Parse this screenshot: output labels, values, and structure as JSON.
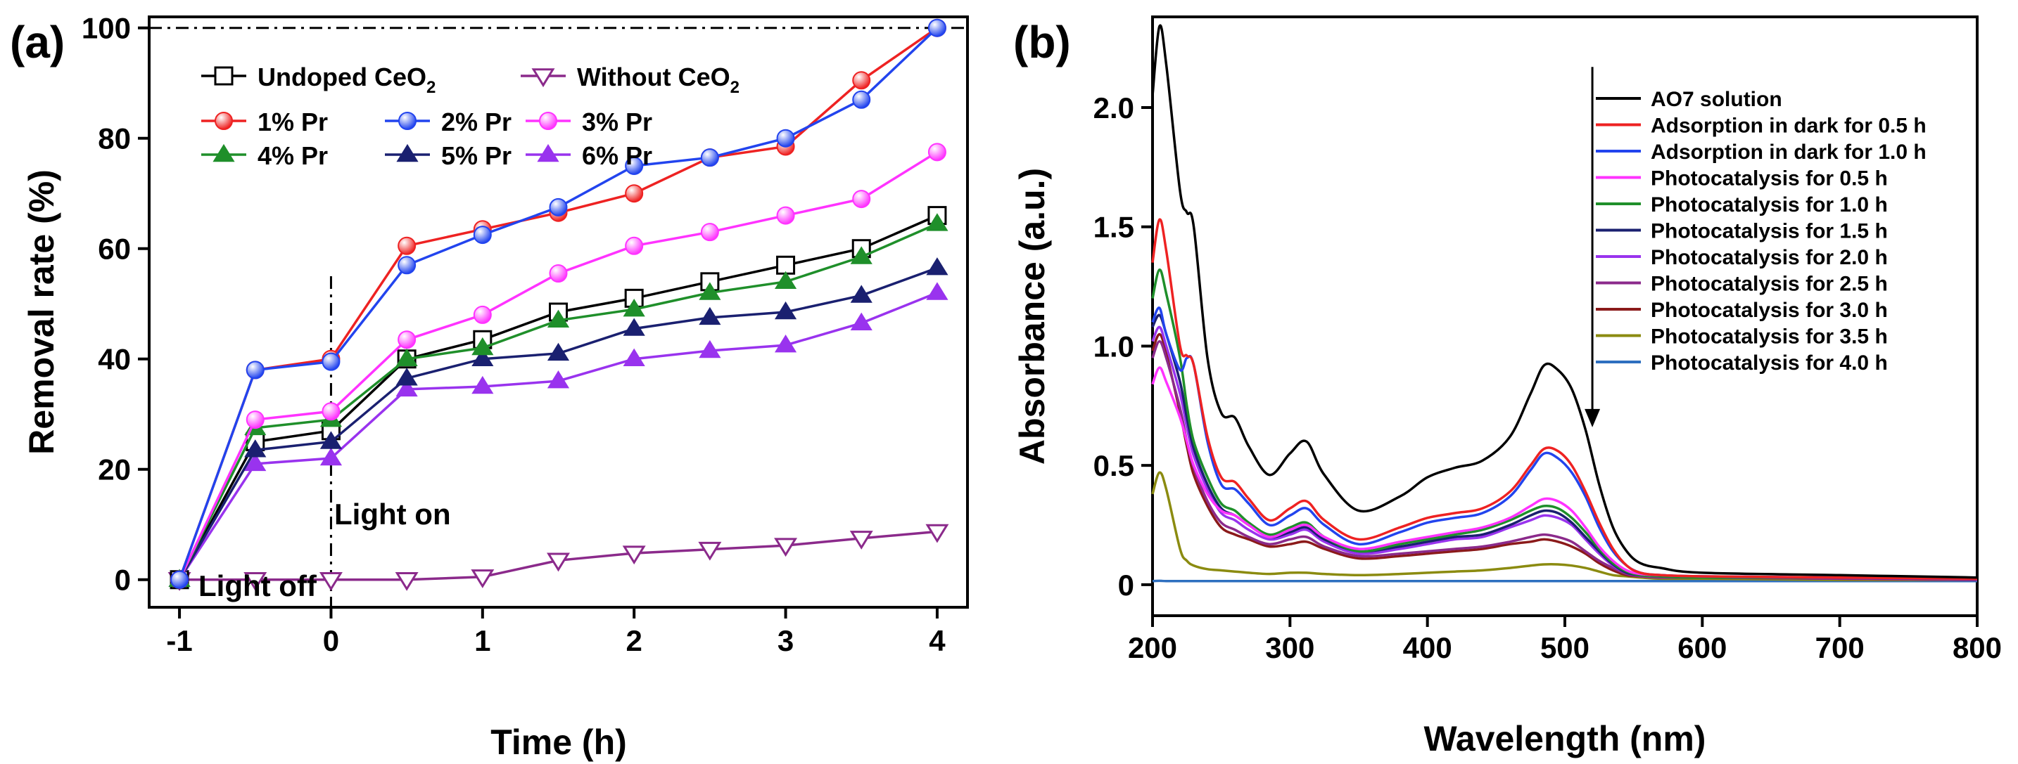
{
  "chart_data": [
    {
      "panel_label": "(a)",
      "type": "line",
      "xlabel": "Time (h)",
      "ylabel": "Removal rate (%)",
      "xlim": [
        -1.2,
        4.2
      ],
      "ylim": [
        -5,
        102
      ],
      "xticks": [
        -1,
        0,
        1,
        2,
        3,
        4
      ],
      "xtick_labels": [
        "-1",
        "0",
        "1",
        "2",
        "3",
        "4"
      ],
      "yticks": [
        0,
        20,
        40,
        60,
        80,
        100
      ],
      "ytick_labels": [
        "0",
        "20",
        "40",
        "60",
        "80",
        "100"
      ],
      "reference_line_y": 100,
      "divider_x": 0,
      "annotations": {
        "light_off": "Light off",
        "light_on": "Light on"
      },
      "legend": {
        "row1": [
          {
            "series": 0,
            "name": "Undoped CeO",
            "subscript": "2"
          },
          {
            "series": 1,
            "name": "Without CeO",
            "subscript": "2"
          }
        ],
        "rows": [
          [
            2,
            3,
            4
          ],
          [
            5,
            6,
            7
          ]
        ]
      },
      "x": [
        -1,
        -0.5,
        0,
        0.5,
        1,
        1.5,
        2,
        2.5,
        3,
        3.5,
        4
      ],
      "series": [
        {
          "name": "Undoped CeO2",
          "color": "#000000",
          "marker": "square-open",
          "values": [
            0,
            25,
            27,
            40,
            43.5,
            48.5,
            51,
            54,
            57,
            60,
            66
          ]
        },
        {
          "name": "Without CeO2",
          "color": "#8b2a8b",
          "marker": "triangle-down-open",
          "values": [
            0,
            0,
            0,
            0,
            0.5,
            3.5,
            4.8,
            5.5,
            6.2,
            7.5,
            8.7
          ]
        },
        {
          "name": "1% Pr",
          "color": "#ee2222",
          "marker": "sphere",
          "values": [
            0,
            38,
            40,
            60.5,
            63.5,
            66.5,
            70,
            76.5,
            78.5,
            90.5,
            100
          ]
        },
        {
          "name": "2% Pr",
          "color": "#2244ee",
          "marker": "sphere",
          "values": [
            0,
            38,
            39.5,
            57,
            62.5,
            67.5,
            75,
            76.5,
            80,
            87,
            100
          ]
        },
        {
          "name": "3% Pr",
          "color": "#ff33ff",
          "marker": "sphere",
          "values": [
            0,
            29,
            30.5,
            43.5,
            48,
            55.5,
            60.5,
            63,
            66,
            69,
            77.5
          ]
        },
        {
          "name": "4% Pr",
          "color": "#1f8f2a",
          "marker": "triangle-up",
          "values": [
            0,
            27.5,
            29,
            40,
            42,
            47,
            49,
            52,
            54,
            58.5,
            64.5
          ]
        },
        {
          "name": "5% Pr",
          "color": "#1a2070",
          "marker": "triangle-up",
          "values": [
            0,
            23.5,
            25,
            36.5,
            40,
            41,
            45.5,
            47.5,
            48.5,
            51.5,
            56.5
          ]
        },
        {
          "name": "6% Pr",
          "color": "#9933ee",
          "marker": "triangle-up",
          "values": [
            0,
            21,
            22,
            34.5,
            35,
            36,
            40,
            41.5,
            42.5,
            46.5,
            52
          ]
        }
      ]
    },
    {
      "panel_label": "(b)",
      "type": "line",
      "xlabel": "Wavelength (nm)",
      "ylabel": "Absorbance (a.u.)",
      "xlim": [
        200,
        800
      ],
      "ylim": [
        -0.13,
        2.38
      ],
      "xticks": [
        200,
        300,
        400,
        500,
        600,
        700,
        800
      ],
      "xtick_labels": [
        "200",
        "300",
        "400",
        "500",
        "600",
        "700",
        "800"
      ],
      "yticks": [
        0,
        0.5,
        1.0,
        1.5,
        2.0
      ],
      "ytick_labels": [
        "0",
        "0.5",
        "1.0",
        "1.5",
        "2.0"
      ],
      "arrow": {
        "x": 520,
        "y_start": 2.17,
        "y_end": 0.66
      },
      "x": [
        200,
        205,
        210,
        220,
        225,
        230,
        240,
        250,
        260,
        270,
        285,
        300,
        312,
        325,
        350,
        380,
        400,
        420,
        440,
        460,
        475,
        485,
        495,
        505,
        515,
        525,
        535,
        545,
        555,
        570,
        600,
        700,
        800
      ],
      "series": [
        {
          "name": "AO7 solution",
          "color": "#000000",
          "values": [
            2.05,
            2.34,
            2.18,
            1.65,
            1.56,
            1.5,
            0.95,
            0.72,
            0.7,
            0.58,
            0.46,
            0.55,
            0.6,
            0.46,
            0.31,
            0.37,
            0.45,
            0.49,
            0.52,
            0.62,
            0.8,
            0.92,
            0.9,
            0.82,
            0.65,
            0.42,
            0.24,
            0.14,
            0.09,
            0.07,
            0.05,
            0.04,
            0.03
          ]
        },
        {
          "name": "Adsorption in dark for 0.5 h",
          "color": "#ee2222",
          "values": [
            1.35,
            1.53,
            1.4,
            1.0,
            0.96,
            0.92,
            0.62,
            0.45,
            0.43,
            0.36,
            0.27,
            0.32,
            0.35,
            0.27,
            0.19,
            0.24,
            0.28,
            0.3,
            0.32,
            0.39,
            0.5,
            0.57,
            0.56,
            0.5,
            0.39,
            0.26,
            0.15,
            0.08,
            0.05,
            0.04,
            0.035,
            0.03,
            0.025
          ]
        },
        {
          "name": "Adsorption in dark for 1.0 h",
          "color": "#2244ee",
          "values": [
            1.1,
            1.16,
            1.05,
            0.9,
            0.95,
            0.92,
            0.6,
            0.42,
            0.4,
            0.34,
            0.25,
            0.29,
            0.32,
            0.25,
            0.17,
            0.22,
            0.26,
            0.28,
            0.3,
            0.37,
            0.48,
            0.55,
            0.53,
            0.47,
            0.37,
            0.24,
            0.14,
            0.08,
            0.05,
            0.04,
            0.035,
            0.03,
            0.025
          ]
        },
        {
          "name": "Photocatalysis for 0.5 h",
          "color": "#ff33ff",
          "values": [
            0.84,
            0.91,
            0.85,
            0.7,
            0.6,
            0.5,
            0.38,
            0.31,
            0.29,
            0.25,
            0.2,
            0.23,
            0.25,
            0.2,
            0.15,
            0.18,
            0.2,
            0.22,
            0.24,
            0.28,
            0.33,
            0.36,
            0.35,
            0.31,
            0.24,
            0.16,
            0.1,
            0.06,
            0.045,
            0.04,
            0.035,
            0.03,
            0.025
          ]
        },
        {
          "name": "Photocatalysis for 1.0 h",
          "color": "#1f8f2a",
          "values": [
            1.2,
            1.32,
            1.22,
            0.95,
            0.75,
            0.6,
            0.45,
            0.34,
            0.31,
            0.26,
            0.21,
            0.24,
            0.26,
            0.2,
            0.14,
            0.17,
            0.19,
            0.21,
            0.23,
            0.27,
            0.31,
            0.33,
            0.32,
            0.28,
            0.22,
            0.15,
            0.09,
            0.055,
            0.04,
            0.035,
            0.03,
            0.03,
            0.025
          ]
        },
        {
          "name": "Photocatalysis for 1.5 h",
          "color": "#1a2070",
          "values": [
            1.08,
            1.13,
            1.05,
            0.85,
            0.7,
            0.57,
            0.42,
            0.32,
            0.29,
            0.25,
            0.2,
            0.22,
            0.24,
            0.19,
            0.14,
            0.16,
            0.18,
            0.2,
            0.21,
            0.25,
            0.29,
            0.31,
            0.3,
            0.26,
            0.2,
            0.14,
            0.085,
            0.05,
            0.04,
            0.035,
            0.03,
            0.03,
            0.025
          ]
        },
        {
          "name": "Photocatalysis for 2.0 h",
          "color": "#9933ee",
          "values": [
            1.02,
            1.08,
            1.0,
            0.8,
            0.66,
            0.54,
            0.4,
            0.3,
            0.27,
            0.23,
            0.19,
            0.21,
            0.23,
            0.18,
            0.13,
            0.15,
            0.17,
            0.19,
            0.2,
            0.24,
            0.27,
            0.29,
            0.28,
            0.25,
            0.19,
            0.13,
            0.08,
            0.05,
            0.04,
            0.035,
            0.03,
            0.03,
            0.025
          ]
        },
        {
          "name": "Photocatalysis for 2.5 h",
          "color": "#8b2a8b",
          "values": [
            0.95,
            1.02,
            0.95,
            0.74,
            0.6,
            0.49,
            0.35,
            0.26,
            0.23,
            0.2,
            0.17,
            0.19,
            0.2,
            0.16,
            0.12,
            0.13,
            0.14,
            0.15,
            0.16,
            0.18,
            0.2,
            0.21,
            0.2,
            0.18,
            0.14,
            0.1,
            0.07,
            0.045,
            0.035,
            0.03,
            0.03,
            0.025,
            0.02
          ]
        },
        {
          "name": "Photocatalysis for 3.0 h",
          "color": "#8b1a1a",
          "values": [
            0.98,
            1.05,
            0.97,
            0.72,
            0.58,
            0.46,
            0.33,
            0.24,
            0.21,
            0.19,
            0.16,
            0.17,
            0.18,
            0.15,
            0.11,
            0.12,
            0.13,
            0.14,
            0.15,
            0.17,
            0.18,
            0.19,
            0.18,
            0.16,
            0.13,
            0.09,
            0.06,
            0.04,
            0.035,
            0.03,
            0.03,
            0.025,
            0.02
          ]
        },
        {
          "name": "Photocatalysis for 3.5 h",
          "color": "#8b8b10",
          "values": [
            0.38,
            0.47,
            0.4,
            0.15,
            0.1,
            0.08,
            0.065,
            0.06,
            0.055,
            0.05,
            0.045,
            0.05,
            0.05,
            0.045,
            0.04,
            0.045,
            0.05,
            0.055,
            0.06,
            0.07,
            0.08,
            0.085,
            0.085,
            0.08,
            0.07,
            0.055,
            0.04,
            0.035,
            0.03,
            0.025,
            0.025,
            0.02,
            0.02
          ]
        },
        {
          "name": "Photocatalysis for 4.0 h",
          "color": "#2e6fbf",
          "values": [
            0.015,
            0.016,
            0.015,
            0.015,
            0.015,
            0.015,
            0.015,
            0.015,
            0.015,
            0.015,
            0.015,
            0.015,
            0.015,
            0.015,
            0.015,
            0.015,
            0.015,
            0.015,
            0.015,
            0.015,
            0.015,
            0.015,
            0.015,
            0.015,
            0.015,
            0.015,
            0.015,
            0.015,
            0.015,
            0.015,
            0.015,
            0.015,
            0.015
          ]
        }
      ]
    }
  ]
}
